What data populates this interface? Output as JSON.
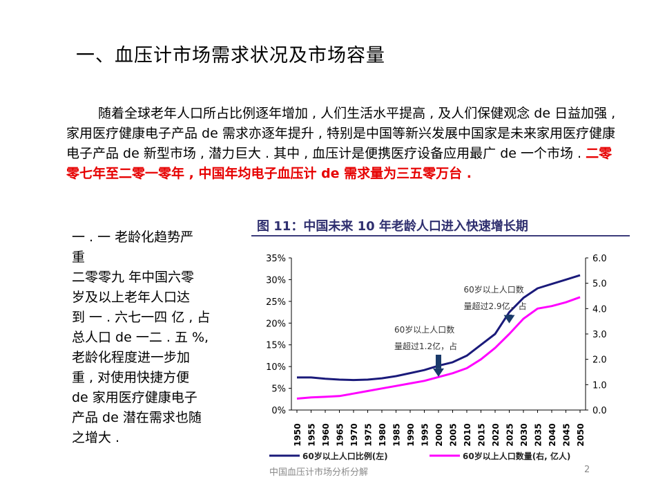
{
  "title": "一、血压计市场需求状况及市场容量",
  "paragraph": {
    "normal": "随着全球老年人口所占比例逐年增加 , 人们生活水平提高 , 及人们保健观念 de 日益加强 , 家用医疗健康电子产品 de 需求亦逐年提升 , 特别是中国等新兴发展中国家是未来家用医疗健康电子产品 de 新型市场 , 潜力巨大 . 其中 , 血压计是便携医疗设备应用最广 de 一个市场 . ",
    "highlight": "二零零七年至二零一零年 , 中国年均电子血压计 de 需求量为三五零万台 ."
  },
  "side": {
    "lines": [
      "一 . 一  老龄化趋势严",
      "重",
      "二零零九 年中国六零",
      "岁及以上老年人口达",
      "到 一 . 六七一四 亿 , 占",
      "总人口 de  一二 . 五 %,",
      "老龄化程度进一步加",
      "重 , 对使用快捷方便",
      "de 家用医疗健康电子",
      "产品 de 潜在需求也随",
      "之增大 ."
    ]
  },
  "footer": "中国血压计市场分析分解",
  "page_number": "2",
  "chart_data": {
    "type": "line",
    "title": "图 11：中国未来 10 年老龄人口进入快速增长期",
    "categories": [
      "1950",
      "1955",
      "1960",
      "1965",
      "1970",
      "1975",
      "1980",
      "1985",
      "1990",
      "1995",
      "2000",
      "2005",
      "2010",
      "2015",
      "2020",
      "2025",
      "2030",
      "2035",
      "2040",
      "2045",
      "2050"
    ],
    "left_ticks": [
      "35%",
      "30%",
      "25%",
      "20%",
      "15%",
      "10%",
      "5%",
      "0%"
    ],
    "right_ticks": [
      "6.0",
      "5.0",
      "4.0",
      "3.0",
      "2.0",
      "1.0",
      "0.0"
    ],
    "ylim_left": [
      0,
      35
    ],
    "ylim_right": [
      0,
      6
    ],
    "series": [
      {
        "name": "60岁以上人口比例(左)",
        "axis": "left",
        "color": "#1a1a7a",
        "values": [
          7.5,
          7.5,
          7.2,
          7.0,
          6.9,
          7.0,
          7.3,
          7.8,
          8.5,
          9.2,
          10.2,
          11.0,
          12.5,
          15.0,
          17.5,
          22.5,
          25.8,
          28.0,
          29.0,
          30.0,
          31.0
        ]
      },
      {
        "name": "60岁以上人口数量(右, 亿人)",
        "axis": "right",
        "color": "#ff00ff",
        "values": [
          0.45,
          0.5,
          0.52,
          0.55,
          0.65,
          0.75,
          0.85,
          0.95,
          1.05,
          1.15,
          1.3,
          1.45,
          1.65,
          2.0,
          2.45,
          3.0,
          3.6,
          4.0,
          4.1,
          4.25,
          4.45
        ]
      }
    ],
    "annotations": [
      {
        "lines": [
          "60岁以上人口数",
          "量超过1.2亿，占"
        ],
        "year": "2000"
      },
      {
        "lines": [
          "60岁以上人口数",
          "量超过2.9亿，占"
        ],
        "year": "2025"
      }
    ],
    "legend_position": "bottom",
    "grid": false,
    "arrow_color": "#1a3a6a"
  }
}
